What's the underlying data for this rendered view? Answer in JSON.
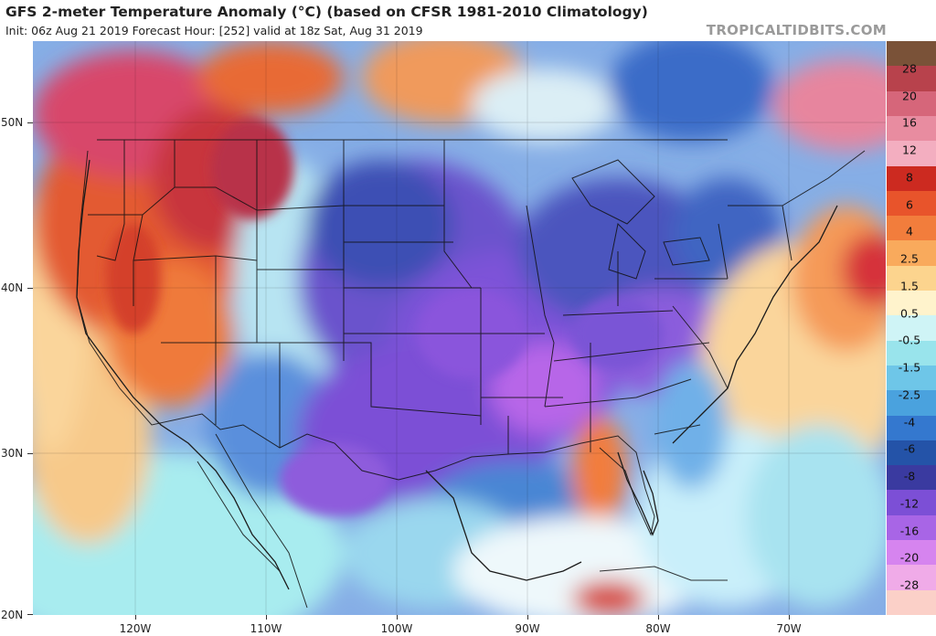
{
  "header": {
    "title": "GFS 2-meter Temperature Anomaly (°C) (based on CFSR 1981-2010 Climatology)",
    "subtitle": "Init: 06z Aug 21 2019   Forecast Hour: [252]   valid at 18z Sat, Aug 31 2019",
    "brand": "TROPICALTIDBITS.COM"
  },
  "axes": {
    "lat_labels": [
      "50N",
      "40N",
      "30N",
      "20N"
    ],
    "lon_labels": [
      "120W",
      "110W",
      "100W",
      "90W",
      "80W",
      "70W"
    ]
  },
  "colorbar": {
    "labels": [
      "28",
      "20",
      "16",
      "12",
      "8",
      "6",
      "4",
      "2.5",
      "1.5",
      "0.5",
      "-0.5",
      "-1.5",
      "-2.5",
      "-4",
      "-6",
      "-8",
      "-12",
      "-16",
      "-20",
      "-28"
    ],
    "colors": [
      "#7a5238",
      "#b8424c",
      "#d6667a",
      "#e88ca0",
      "#f3aec0",
      "#cc2a20",
      "#e8542b",
      "#f27d3c",
      "#f9aa5c",
      "#fcd48e",
      "#fff3cc",
      "#cff4f6",
      "#99e4ec",
      "#6ec6e8",
      "#4aa2de",
      "#3478cf",
      "#2453a8",
      "#3a3aa0",
      "#7c4fd6",
      "#a865e6",
      "#d684ef",
      "#f0abe8",
      "#fbd0c8"
    ]
  },
  "legend_colors": {
    "warm": "#e8542b",
    "hot": "#c0303a",
    "cool": "#7fa3e2",
    "cold": "#2f5fbf",
    "very_cold": "#7b52d6",
    "extreme_cold": "#c46ce6",
    "neutral": "#fff3cc"
  }
}
